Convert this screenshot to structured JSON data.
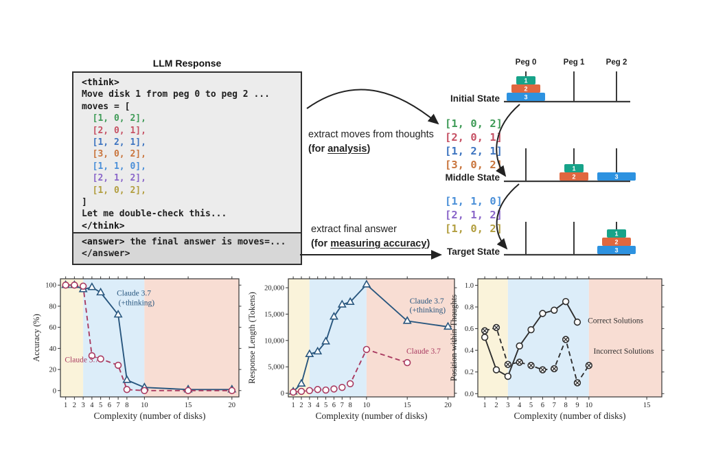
{
  "figure": {
    "title": "LLM Response"
  },
  "llm_response": {
    "think_open": "<think>",
    "code_lines": [
      {
        "text": "Move disk 1 from peg 0 to peg 2 ...",
        "color": "#1f1f1f"
      },
      {
        "text": "moves = [",
        "color": "#1f1f1f"
      },
      {
        "text": "  [1, 0, 2],",
        "color": "#3f9b57"
      },
      {
        "text": "  [2, 0, 1],",
        "color": "#c65164"
      },
      {
        "text": "  [1, 2, 1],",
        "color": "#3d74c0"
      },
      {
        "text": "  [3, 0, 2],",
        "color": "#c9753d"
      },
      {
        "text": "  [1, 1, 0],",
        "color": "#4a8fd8"
      },
      {
        "text": "  [2, 1, 2],",
        "color": "#8a66c9"
      },
      {
        "text": "  [1, 0, 2],",
        "color": "#b29e3f"
      },
      {
        "text": "]",
        "color": "#1f1f1f"
      },
      {
        "text": "Let me double-check this...",
        "color": "#1f1f1f"
      }
    ],
    "think_close": "</think>",
    "answer_open": "<answer>",
    "answer_text": " the final answer is moves=...",
    "answer_close": "</answer>"
  },
  "extract": {
    "moves": {
      "line1": "extract moves  from thoughts",
      "pre": "(for ",
      "underlined": "analysis",
      "post": ")"
    },
    "answer": {
      "line1": "extract final answer",
      "pre": "(for ",
      "underlined": "measuring accuracy",
      "post": ")"
    }
  },
  "hanoi": {
    "peg_labels": [
      "Peg 0",
      "Peg 1",
      "Peg 2"
    ],
    "disk_colors": {
      "1": "#17a389",
      "2": "#e0673f",
      "3": "#2d92e0"
    },
    "states": [
      {
        "label": "Initial State",
        "pegs": [
          [
            3,
            2,
            1
          ],
          [],
          []
        ]
      },
      {
        "label": "Middle State",
        "pegs": [
          [],
          [
            2,
            1
          ],
          [
            3
          ]
        ]
      },
      {
        "label": "Target State",
        "pegs": [
          [],
          [],
          [
            3,
            2,
            1
          ]
        ]
      }
    ],
    "move_groups": [
      {
        "items": [
          {
            "text": "[1, 0, 2]",
            "color": "#3f9b57"
          },
          {
            "text": "[2, 0, 1]",
            "color": "#c65164"
          },
          {
            "text": "[1, 2, 1]",
            "color": "#3d74c0"
          },
          {
            "text": "[3, 0, 2]",
            "color": "#c9753d"
          }
        ]
      },
      {
        "items": [
          {
            "text": "[1, 1, 0]",
            "color": "#4a8fd8"
          },
          {
            "text": "[2, 1, 2]",
            "color": "#8a66c9"
          },
          {
            "text": "[1, 0, 2]",
            "color": "#b29e3f"
          }
        ]
      }
    ]
  },
  "chart_data": [
    {
      "type": "line",
      "xlabel": "Complexity (number of disks)",
      "ylabel": "Accuracy (%)",
      "xlim": [
        0.4,
        20.8
      ],
      "ylim": [
        -6,
        106
      ],
      "x_ticks": [
        1,
        2,
        3,
        4,
        5,
        6,
        7,
        8,
        10,
        15,
        20
      ],
      "x_tick_labels": [
        "1",
        "2",
        "3",
        "4",
        "5",
        "6",
        "7",
        "8",
        "10",
        "15",
        "20"
      ],
      "y_ticks": [
        0,
        20,
        40,
        60,
        80,
        100
      ],
      "y_tick_labels": [
        "0",
        "20",
        "40",
        "60",
        "80",
        "100"
      ],
      "zones": [
        {
          "from": 0.4,
          "to": 3,
          "color": "#faf3da"
        },
        {
          "from": 3,
          "to": 10,
          "color": "#dcedf9"
        },
        {
          "from": 10,
          "to": 20.8,
          "color": "#f8ddd3"
        }
      ],
      "series": [
        {
          "name": "Claude 3.7 (+thinking)",
          "color": "#28567e",
          "style": "solid",
          "marker": "triangle",
          "x": [
            1,
            2,
            3,
            4,
            5,
            7,
            8,
            10,
            15,
            20
          ],
          "y": [
            100,
            100,
            96,
            98,
            93,
            72,
            10,
            3,
            1,
            1
          ]
        },
        {
          "name": "Claude 3.7",
          "color": "#a93a60",
          "style": "dashed",
          "marker": "circle",
          "x": [
            1,
            2,
            3,
            4,
            5,
            7,
            8,
            10,
            15,
            20
          ],
          "y": [
            100,
            100,
            99,
            33,
            30,
            24,
            1,
            0,
            0,
            0
          ]
        }
      ],
      "annotations": [
        {
          "text": "Claude 3.7",
          "x": 0.9,
          "y": 27,
          "color": "#a93a60",
          "anchor": "start"
        },
        {
          "text": "Claude 3.7",
          "x": 8.8,
          "y": 90,
          "color": "#28567e",
          "anchor": "middle"
        },
        {
          "text": "(+thinking)",
          "x": 9.1,
          "y": 81,
          "color": "#28567e",
          "anchor": "middle"
        }
      ]
    },
    {
      "type": "line",
      "xlabel": "Complexity (number of disks)",
      "ylabel": "Response Length (Tokens)",
      "xlim": [
        0.4,
        20.8
      ],
      "ylim": [
        -700,
        21700
      ],
      "x_ticks": [
        1,
        2,
        3,
        4,
        5,
        6,
        7,
        8,
        10,
        15,
        20
      ],
      "x_tick_labels": [
        "1",
        "2",
        "3",
        "4",
        "5",
        "6",
        "7",
        "8",
        "10",
        "15",
        "20"
      ],
      "y_ticks": [
        0,
        5000,
        10000,
        15000,
        20000
      ],
      "y_tick_labels": [
        "0",
        "5,000",
        "10,000",
        "15,000",
        "20,000"
      ],
      "zones": [
        {
          "from": 0.4,
          "to": 3,
          "color": "#faf3da"
        },
        {
          "from": 3,
          "to": 10,
          "color": "#dcedf9"
        },
        {
          "from": 10,
          "to": 20.8,
          "color": "#f8ddd3"
        }
      ],
      "series": [
        {
          "name": "Claude 3.7 (+thinking)",
          "color": "#28567e",
          "style": "solid",
          "marker": "triangle",
          "x": [
            1,
            2,
            3,
            4,
            5,
            6,
            7,
            8,
            10,
            15,
            20
          ],
          "y": [
            300,
            1800,
            7400,
            7900,
            9800,
            14500,
            16800,
            17300,
            20600,
            13700,
            12600
          ]
        },
        {
          "name": "Claude 3.7",
          "color": "#a93a60",
          "style": "dashed",
          "marker": "circle",
          "x": [
            1,
            2,
            3,
            4,
            5,
            6,
            7,
            8,
            10,
            15
          ],
          "y": [
            200,
            350,
            500,
            700,
            600,
            800,
            1100,
            1800,
            8300,
            5800
          ]
        }
      ],
      "annotations": [
        {
          "text": "Claude 3.7",
          "x": 17.0,
          "y": 7500,
          "color": "#a93a60",
          "anchor": "middle"
        },
        {
          "text": "Claude 3.7",
          "x": 17.4,
          "y": 17000,
          "color": "#28567e",
          "anchor": "middle"
        },
        {
          "text": "(+thinking)",
          "x": 17.5,
          "y": 15300,
          "color": "#28567e",
          "anchor": "middle"
        }
      ]
    },
    {
      "type": "line",
      "xlabel": "Complexity (number of disks)",
      "ylabel": "Position within Thoughts",
      "xlim": [
        0.4,
        16.3
      ],
      "ylim": [
        -0.03,
        1.06
      ],
      "x_ticks": [
        1,
        2,
        3,
        4,
        5,
        6,
        7,
        8,
        9,
        10,
        15
      ],
      "x_tick_labels": [
        "1",
        "2",
        "3",
        "4",
        "5",
        "6",
        "7",
        "8",
        "9",
        "10",
        "15"
      ],
      "y_ticks": [
        0,
        0.2,
        0.4,
        0.6,
        0.8,
        1.0
      ],
      "y_tick_labels": [
        "0.0",
        "0.2",
        "0.4",
        "0.6",
        "0.8",
        "1.0"
      ],
      "zones": [
        {
          "from": 0.4,
          "to": 3,
          "color": "#faf3da"
        },
        {
          "from": 3,
          "to": 10,
          "color": "#dcedf9"
        },
        {
          "from": 10,
          "to": 16.3,
          "color": "#f8ddd3"
        }
      ],
      "series": [
        {
          "name": "Correct Solutions",
          "color": "#2e2e2e",
          "style": "solid",
          "marker": "circle",
          "x": [
            1,
            2,
            3,
            4,
            5,
            6,
            7,
            8,
            9
          ],
          "y": [
            0.52,
            0.22,
            0.16,
            0.44,
            0.59,
            0.74,
            0.77,
            0.85,
            0.66
          ]
        },
        {
          "name": "Incorrect Solutions",
          "color": "#2e2e2e",
          "style": "dashed",
          "marker": "circle-x",
          "x": [
            1,
            2,
            3,
            4,
            5,
            6,
            7,
            8,
            9,
            10
          ],
          "y": [
            0.58,
            0.61,
            0.27,
            0.29,
            0.26,
            0.22,
            0.23,
            0.5,
            0.1,
            0.26
          ]
        }
      ],
      "annotations": [
        {
          "text": "Correct Solutions",
          "x": 9.9,
          "y": 0.65,
          "color": "#2e2e2e",
          "anchor": "start"
        },
        {
          "text": "Incorrect Solutions",
          "x": 10.4,
          "y": 0.37,
          "color": "#2e2e2e",
          "anchor": "start"
        }
      ]
    }
  ]
}
